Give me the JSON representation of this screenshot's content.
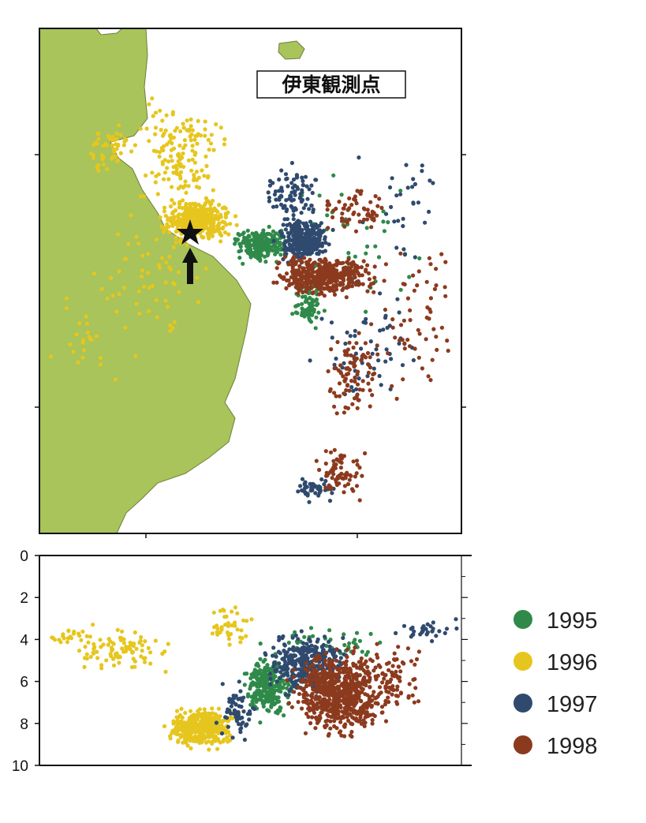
{
  "map": {
    "station_label": "伊東観測点",
    "station_marker": "star-icon",
    "arrow": "arrow-up-icon",
    "land_color": "#a8c45a",
    "sea_color": "#ffffff"
  },
  "legend": [
    {
      "label": "1995",
      "color": "#2f8a4a"
    },
    {
      "label": "1996",
      "color": "#e6c61e"
    },
    {
      "label": "1997",
      "color": "#2f4a6e"
    },
    {
      "label": "1998",
      "color": "#8c3a1e"
    }
  ],
  "chart_data": {
    "type": "scatter",
    "title": "",
    "xlabel": "",
    "ylabel": "",
    "ylim": [
      10,
      0
    ],
    "yticks": [
      "0",
      "2",
      "4",
      "6",
      "8",
      "10"
    ],
    "series": [
      {
        "name": "1995",
        "color": "#2f8a4a",
        "x": [
          0.55,
          0.57,
          0.59,
          0.53,
          0.56
        ],
        "y": [
          6.2,
          5.8,
          7.0,
          6.6,
          6.0
        ]
      },
      {
        "name": "1996",
        "color": "#e6c61e",
        "x": [
          0.35,
          0.38,
          0.4,
          0.33,
          0.12,
          0.2
        ],
        "y": [
          8.2,
          7.8,
          8.5,
          7.4,
          4.0,
          5.5
        ]
      },
      {
        "name": "1997",
        "color": "#2f4a6e",
        "x": [
          0.62,
          0.64,
          0.6,
          0.66
        ],
        "y": [
          5.0,
          4.5,
          5.8,
          6.5
        ]
      },
      {
        "name": "1998",
        "color": "#8c3a1e",
        "x": [
          0.7,
          0.74,
          0.68,
          0.76,
          0.72
        ],
        "y": [
          6.5,
          7.5,
          5.5,
          8.0,
          4.5
        ]
      }
    ]
  }
}
